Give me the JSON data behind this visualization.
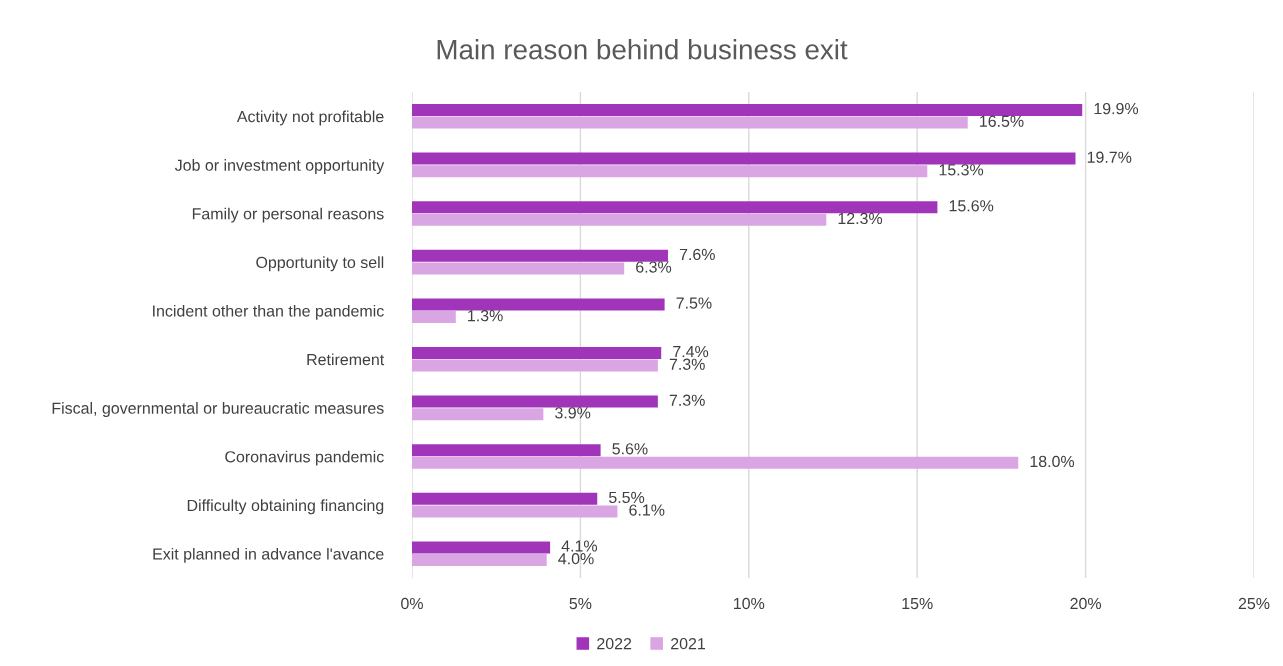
{
  "chart_data": {
    "type": "bar",
    "orientation": "horizontal",
    "title": "Main reason behind business exit",
    "categories": [
      "Activity not profitable",
      "Job or investment opportunity",
      "Family or personal reasons",
      "Opportunity to sell",
      "Incident other than the pandemic",
      "Retirement",
      "Fiscal, governmental or bureaucratic measures",
      "Coronavirus pandemic",
      "Difficulty obtaining financing",
      "Exit planned in advance l'avance"
    ],
    "series": [
      {
        "name": "2022",
        "color": "#a035b9",
        "values": [
          19.9,
          19.7,
          15.6,
          7.6,
          7.5,
          7.4,
          7.3,
          5.6,
          5.5,
          4.1
        ],
        "value_labels": [
          "19.9%",
          "19.7%",
          "15.6%",
          "7.6%",
          "7.5%",
          "7.4%",
          "7.3%",
          "5.6%",
          "5.5%",
          "4.1%"
        ]
      },
      {
        "name": "2021",
        "color": "#d9a5e2",
        "values": [
          16.5,
          15.3,
          12.3,
          6.3,
          1.3,
          7.3,
          3.9,
          18.0,
          6.1,
          4.0
        ],
        "value_labels": [
          "16.5%",
          "15.3%",
          "12.3%",
          "6.3%",
          "1.3%",
          "7.3%",
          "3.9%",
          "18.0%",
          "6.1%",
          "4.0%"
        ]
      }
    ],
    "xlim": [
      0,
      25
    ],
    "xticks": [
      {
        "value": 0,
        "label": "0%"
      },
      {
        "value": 5,
        "label": "5%"
      },
      {
        "value": 10,
        "label": "10%"
      },
      {
        "value": 15,
        "label": "15%"
      },
      {
        "value": 20,
        "label": "20%"
      },
      {
        "value": 25,
        "label": "25%"
      }
    ],
    "grid": "x",
    "legend": "bottom"
  }
}
